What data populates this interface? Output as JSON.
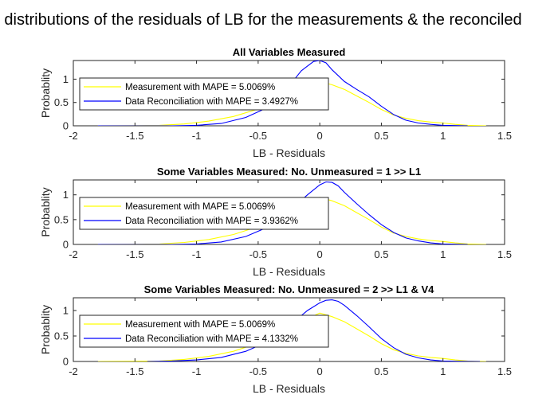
{
  "figure": {
    "suptitle": "distributions of the residuals of LB for the measurements & the reconciled",
    "colors": {
      "measurement": "#ffff00",
      "reconciliation": "#0000ff",
      "axis": "#262626"
    }
  },
  "chart_data": [
    {
      "type": "line",
      "title": "All Variables Measured",
      "xlabel": "LB - Residuals",
      "ylabel": "Probablity",
      "xlim": [
        -2,
        1.5
      ],
      "ylim": [
        0,
        1.4
      ],
      "xticks": [
        "-2",
        "-1.5",
        "-1",
        "-0.5",
        "0",
        "0.5",
        "1",
        "1.5"
      ],
      "yticks": [
        "0",
        "0.5",
        "1"
      ],
      "grid": false,
      "legend_position": "middle-left",
      "series": [
        {
          "name": "Measurement with MAPE = 5.0069%",
          "color": "#ffff00",
          "x": [
            -1.8,
            -1.5,
            -1.3,
            -1.1,
            -0.9,
            -0.7,
            -0.5,
            -0.3,
            -0.1,
            0.0,
            0.1,
            0.2,
            0.3,
            0.4,
            0.5,
            0.6,
            0.7,
            0.8,
            0.9,
            1.0,
            1.1,
            1.2,
            1.35
          ],
          "y": [
            0.0,
            0.005,
            0.01,
            0.04,
            0.1,
            0.2,
            0.36,
            0.58,
            0.84,
            0.95,
            0.88,
            0.78,
            0.64,
            0.5,
            0.35,
            0.23,
            0.16,
            0.11,
            0.08,
            0.06,
            0.03,
            0.01,
            0.0
          ]
        },
        {
          "name": "Data Reconciliation with MAPE = 3.4927%",
          "color": "#0000ff",
          "x": [
            -1.8,
            -1.2,
            -1.0,
            -0.8,
            -0.6,
            -0.45,
            -0.35,
            -0.25,
            -0.15,
            -0.05,
            0.0,
            0.05,
            0.1,
            0.2,
            0.3,
            0.4,
            0.5,
            0.6,
            0.7,
            0.8,
            0.9,
            1.0,
            1.1,
            1.2
          ],
          "y": [
            0.0,
            0.0,
            0.01,
            0.05,
            0.18,
            0.36,
            0.55,
            0.85,
            1.18,
            1.38,
            1.4,
            1.35,
            1.2,
            0.95,
            0.78,
            0.62,
            0.42,
            0.24,
            0.12,
            0.06,
            0.03,
            0.01,
            0.005,
            0.0
          ]
        }
      ]
    },
    {
      "type": "line",
      "title": "Some Variables Measured: No. Unmeasured = 1 >> L1",
      "xlabel": "LB - Residuals",
      "ylabel": "Probablity",
      "xlim": [
        -2,
        1.5
      ],
      "ylim": [
        0,
        1.3
      ],
      "xticks": [
        "-2",
        "-1.5",
        "-1",
        "-0.5",
        "0",
        "0.5",
        "1",
        "1.5"
      ],
      "yticks": [
        "0",
        "0.5",
        "1"
      ],
      "grid": false,
      "legend_position": "middle-left",
      "series": [
        {
          "name": "Measurement with MAPE = 5.0069%",
          "color": "#ffff00",
          "x": [
            -1.8,
            -1.5,
            -1.3,
            -1.1,
            -0.9,
            -0.7,
            -0.5,
            -0.3,
            -0.1,
            0.0,
            0.1,
            0.2,
            0.3,
            0.4,
            0.5,
            0.6,
            0.7,
            0.8,
            0.9,
            1.0,
            1.1,
            1.2,
            1.35
          ],
          "y": [
            0.0,
            0.005,
            0.01,
            0.04,
            0.1,
            0.2,
            0.36,
            0.58,
            0.84,
            0.95,
            0.88,
            0.78,
            0.64,
            0.5,
            0.35,
            0.23,
            0.16,
            0.11,
            0.08,
            0.06,
            0.03,
            0.01,
            0.0
          ]
        },
        {
          "name": "Data Reconciliation with MAPE = 3.9362%",
          "color": "#0000ff",
          "x": [
            -1.8,
            -1.2,
            -1.0,
            -0.8,
            -0.6,
            -0.45,
            -0.3,
            -0.2,
            -0.1,
            0.0,
            0.05,
            0.1,
            0.15,
            0.2,
            0.3,
            0.4,
            0.5,
            0.6,
            0.7,
            0.8,
            0.9,
            1.0,
            1.1,
            1.2
          ],
          "y": [
            0.0,
            0.0,
            0.01,
            0.05,
            0.16,
            0.32,
            0.55,
            0.78,
            1.0,
            1.2,
            1.26,
            1.25,
            1.18,
            1.05,
            0.82,
            0.6,
            0.4,
            0.24,
            0.13,
            0.07,
            0.03,
            0.01,
            0.005,
            0.0
          ]
        }
      ]
    },
    {
      "type": "line",
      "title": "Some Variables Measured: No. Unmeasured = 2 >> L1 & V4",
      "xlabel": "LB - Residuals",
      "ylabel": "Probablity",
      "xlim": [
        -2,
        1.5
      ],
      "ylim": [
        0,
        1.25
      ],
      "xticks": [
        "-2",
        "-1.5",
        "-1",
        "-0.5",
        "0",
        "0.5",
        "1",
        "1.5"
      ],
      "yticks": [
        "0",
        "0.5",
        "1"
      ],
      "grid": false,
      "legend_position": "middle-left",
      "series": [
        {
          "name": "Measurement with MAPE = 5.0069%",
          "color": "#ffff00",
          "x": [
            -1.8,
            -1.5,
            -1.3,
            -1.1,
            -0.9,
            -0.7,
            -0.5,
            -0.3,
            -0.1,
            0.0,
            0.1,
            0.2,
            0.3,
            0.4,
            0.5,
            0.6,
            0.7,
            0.8,
            0.9,
            1.0,
            1.1,
            1.2,
            1.35
          ],
          "y": [
            0.0,
            0.005,
            0.01,
            0.04,
            0.1,
            0.2,
            0.36,
            0.58,
            0.84,
            0.95,
            0.88,
            0.78,
            0.64,
            0.5,
            0.35,
            0.23,
            0.16,
            0.11,
            0.08,
            0.06,
            0.03,
            0.01,
            0.0
          ]
        },
        {
          "name": "Data Reconciliation with MAPE = 4.1332%",
          "color": "#0000ff",
          "x": [
            -1.4,
            -1.2,
            -1.0,
            -0.8,
            -0.6,
            -0.45,
            -0.3,
            -0.2,
            -0.1,
            0.0,
            0.05,
            0.1,
            0.15,
            0.2,
            0.3,
            0.4,
            0.5,
            0.6,
            0.7,
            0.8,
            0.9,
            1.0,
            1.1,
            1.3
          ],
          "y": [
            0.0,
            0.01,
            0.03,
            0.08,
            0.2,
            0.36,
            0.58,
            0.8,
            1.0,
            1.15,
            1.2,
            1.21,
            1.18,
            1.1,
            0.9,
            0.68,
            0.45,
            0.27,
            0.14,
            0.07,
            0.03,
            0.01,
            0.005,
            0.0
          ]
        }
      ]
    }
  ]
}
